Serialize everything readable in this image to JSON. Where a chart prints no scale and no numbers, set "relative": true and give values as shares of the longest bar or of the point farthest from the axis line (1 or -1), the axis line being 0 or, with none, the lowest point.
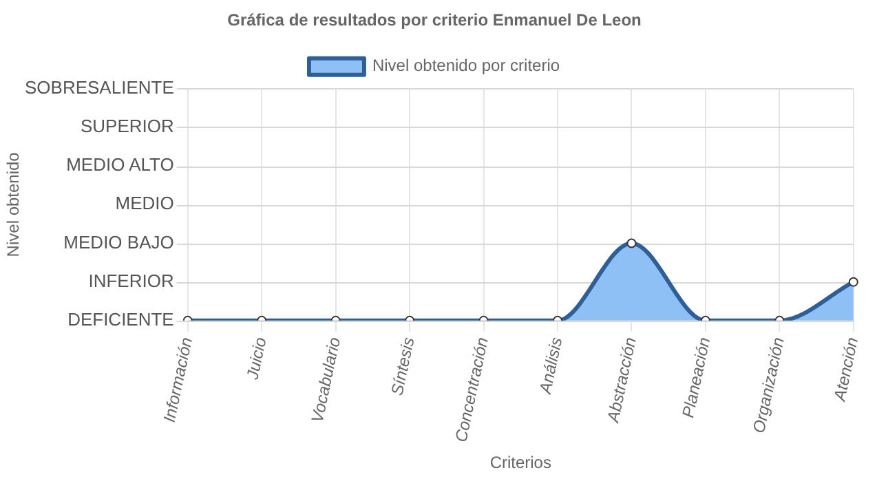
{
  "chart_data": {
    "type": "area",
    "title": "Gráfica de resultados por criterio Enmanuel De Leon",
    "xlabel": "Criterios",
    "annotations": [
      "Nivel obtenido"
    ],
    "categories": [
      "Información",
      "Juicio",
      "Vocabulario",
      "Síntesis",
      "Concentración",
      "Análisis",
      "Abstracción",
      "Planeación",
      "Organización",
      "Atención"
    ],
    "series": [
      {
        "name": "Nivel obtenido por criterio",
        "color": "#2f5f97",
        "values": [
          0,
          0,
          0,
          0,
          0,
          0,
          1,
          0,
          0,
          0.5
        ]
      }
    ],
    "relative": true,
    "ref_lines": [
      {
        "axis": "y",
        "value": 0,
        "label": "DEFICIENTE",
        "color": "#d8d8d8"
      },
      {
        "axis": "y",
        "value": 0.5,
        "label": "INFERIOR",
        "color": "#d8d8d8"
      },
      {
        "axis": "y",
        "value": 1,
        "label": "MEDIO BAJO",
        "color": "#d8d8d8"
      },
      {
        "axis": "y",
        "value": 1.5,
        "label": "MEDIO",
        "color": "#d8d8d8"
      },
      {
        "axis": "y",
        "value": 2,
        "label": "MEDIO ALTO",
        "color": "#d8d8d8"
      },
      {
        "axis": "y",
        "value": 2.5,
        "label": "SUPERIOR",
        "color": "#d8d8d8"
      },
      {
        "axis": "y",
        "value": 3,
        "label": "SOBRESALIENTE",
        "color": "#d8d8d8"
      }
    ],
    "grid": "x",
    "legend": "top",
    "marker": "circle",
    "line_style": "solid"
  }
}
